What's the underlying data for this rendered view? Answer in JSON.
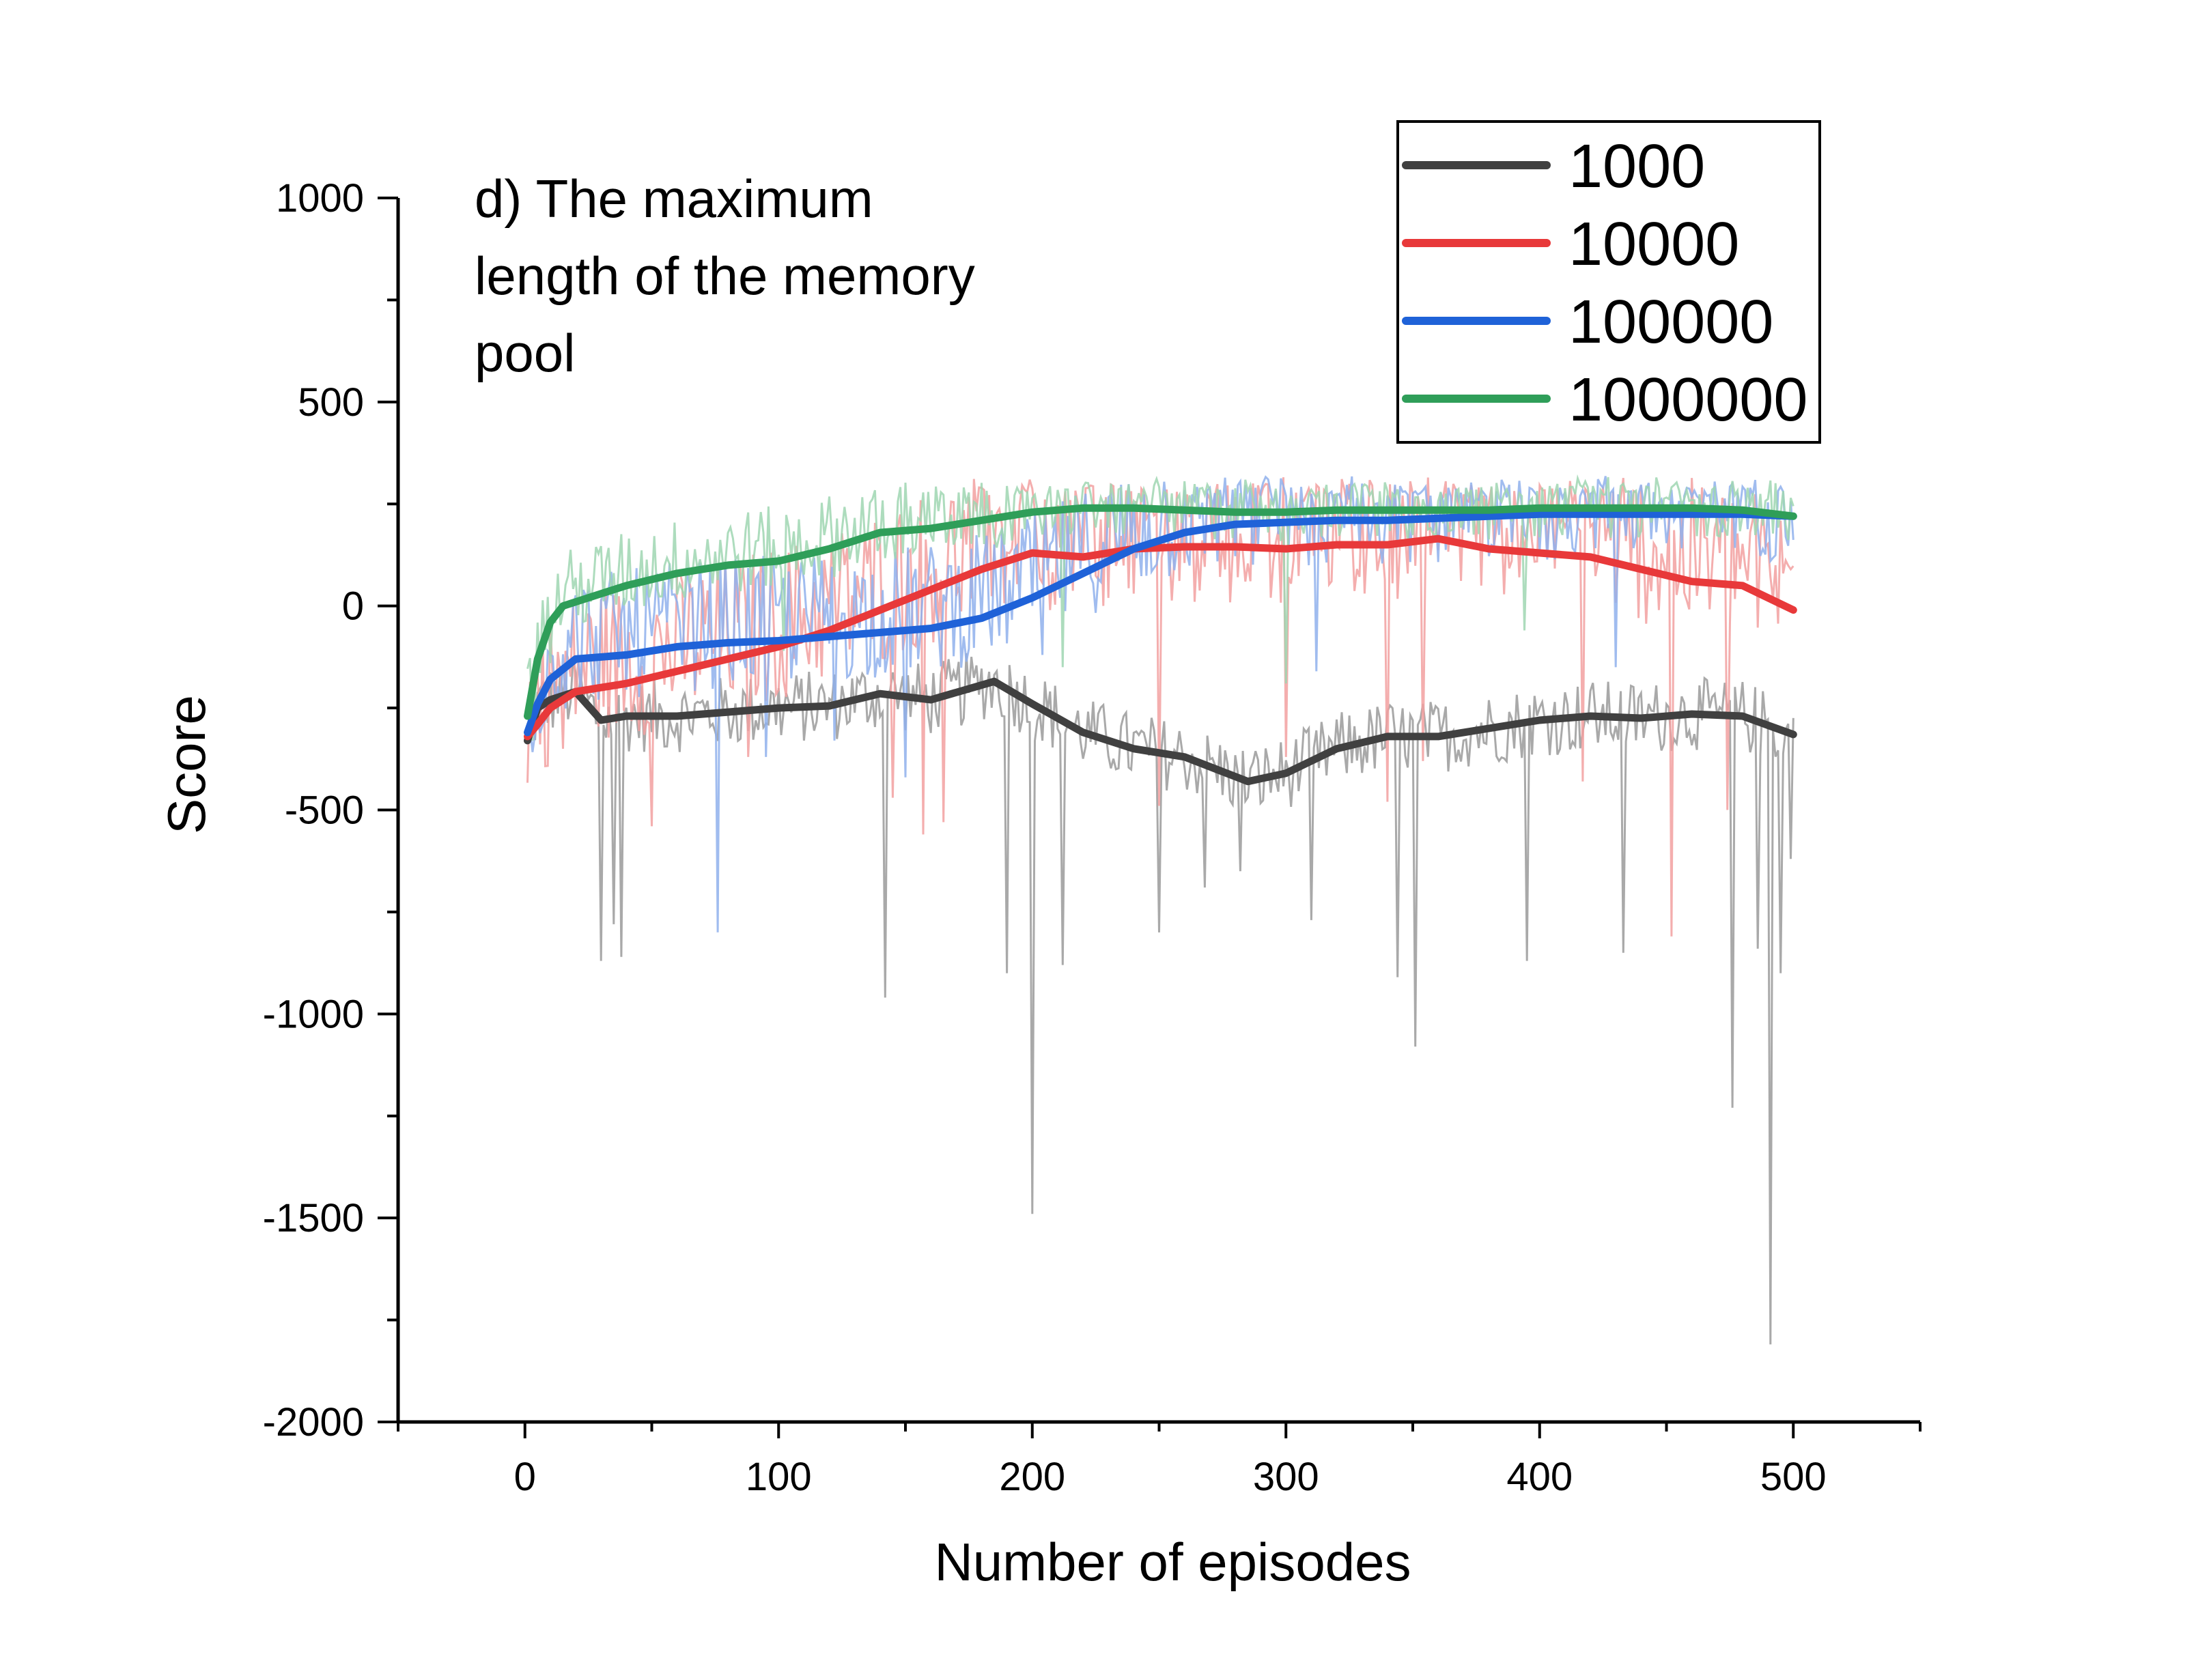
{
  "chart_data": {
    "type": "line",
    "title": "",
    "annotation_lines": [
      "d) The maximum",
      "length of the memory",
      "pool"
    ],
    "xlabel": "Number of episodes",
    "ylabel": "Score",
    "xlim": [
      -50,
      550
    ],
    "ylim": [
      -2000,
      1000
    ],
    "x_ticks": [
      0,
      100,
      200,
      300,
      400,
      500
    ],
    "y_ticks": [
      -2000,
      -1500,
      -1000,
      -500,
      0,
      500,
      1000
    ],
    "x_tick_labels": [
      "0",
      "100",
      "200",
      "300",
      "400",
      "500"
    ],
    "y_tick_labels": [
      "-2000",
      "-1500",
      "-1000",
      "-500",
      "0",
      "500",
      "1000"
    ],
    "grid": false,
    "legend_position": "top-right",
    "series": [
      {
        "name": "1000",
        "color": "#404040",
        "raw_color": "#9a9a9a",
        "x": [
          1,
          5,
          10,
          20,
          30,
          40,
          60,
          80,
          100,
          120,
          140,
          160,
          185,
          200,
          220,
          240,
          260,
          285,
          300,
          320,
          340,
          360,
          380,
          400,
          420,
          440,
          460,
          480,
          500
        ],
        "values": [
          -330,
          -250,
          -230,
          -210,
          -280,
          -270,
          -270,
          -260,
          -250,
          -245,
          -215,
          -230,
          -185,
          -240,
          -310,
          -350,
          -370,
          -430,
          -410,
          -350,
          -320,
          -320,
          -300,
          -280,
          -270,
          -275,
          -265,
          -270,
          -315
        ],
        "raw_mean": -330,
        "raw_spread": 110,
        "spikes": [
          [
            30,
            -870
          ],
          [
            35,
            -780
          ],
          [
            38,
            -860
          ],
          [
            142,
            -960
          ],
          [
            190,
            -900
          ],
          [
            200,
            -1490
          ],
          [
            212,
            -880
          ],
          [
            250,
            -800
          ],
          [
            268,
            -690
          ],
          [
            282,
            -650
          ],
          [
            310,
            -770
          ],
          [
            344,
            -910
          ],
          [
            351,
            -1080
          ],
          [
            395,
            -870
          ],
          [
            433,
            -850
          ],
          [
            476,
            -1230
          ],
          [
            486,
            -840
          ],
          [
            491,
            -1810
          ],
          [
            495,
            -900
          ],
          [
            499,
            -620
          ]
        ]
      },
      {
        "name": "10000",
        "color": "#e8393a",
        "raw_color": "#f2a0a0",
        "x": [
          1,
          5,
          10,
          20,
          40,
          60,
          80,
          100,
          120,
          140,
          160,
          180,
          200,
          220,
          240,
          260,
          280,
          300,
          320,
          340,
          360,
          380,
          400,
          420,
          440,
          460,
          480,
          500
        ],
        "values": [
          -320,
          -290,
          -250,
          -210,
          -190,
          -160,
          -130,
          -100,
          -60,
          -10,
          40,
          90,
          130,
          120,
          140,
          145,
          145,
          140,
          150,
          150,
          165,
          140,
          130,
          120,
          90,
          60,
          50,
          -10
        ],
        "raw_mean": -20,
        "raw_spread": 280,
        "spikes": [
          [
            15,
            -350
          ],
          [
            50,
            -540
          ],
          [
            88,
            -370
          ],
          [
            145,
            -470
          ],
          [
            157,
            -560
          ],
          [
            165,
            -530
          ],
          [
            250,
            -490
          ],
          [
            300,
            -370
          ],
          [
            340,
            -480
          ],
          [
            354,
            -380
          ],
          [
            417,
            -430
          ],
          [
            452,
            -810
          ],
          [
            474,
            -500
          ]
        ]
      },
      {
        "name": "100000",
        "color": "#1f62d8",
        "raw_color": "#8fb0ec",
        "x": [
          1,
          5,
          10,
          20,
          40,
          60,
          80,
          100,
          120,
          140,
          160,
          180,
          200,
          220,
          240,
          260,
          280,
          300,
          320,
          340,
          360,
          380,
          400,
          420,
          440,
          460,
          480,
          500
        ],
        "values": [
          -310,
          -240,
          -180,
          -130,
          -120,
          -100,
          -90,
          -85,
          -75,
          -65,
          -55,
          -30,
          20,
          80,
          140,
          180,
          200,
          205,
          210,
          210,
          215,
          220,
          225,
          225,
          225,
          225,
          225,
          220
        ],
        "raw_mean": 10,
        "raw_spread": 230,
        "spikes": [
          [
            76,
            -800
          ],
          [
            95,
            -370
          ],
          [
            122,
            -330
          ],
          [
            150,
            -420
          ],
          [
            204,
            -120
          ],
          [
            312,
            -160
          ],
          [
            430,
            -150
          ]
        ]
      },
      {
        "name": "1000000",
        "color": "#2f9e59",
        "raw_color": "#9fd6b1",
        "x": [
          1,
          5,
          10,
          15,
          20,
          30,
          40,
          60,
          80,
          100,
          120,
          140,
          160,
          180,
          200,
          220,
          240,
          260,
          280,
          300,
          320,
          340,
          360,
          380,
          400,
          420,
          440,
          460,
          480,
          500
        ],
        "values": [
          -270,
          -130,
          -40,
          0,
          10,
          30,
          50,
          80,
          100,
          110,
          140,
          180,
          190,
          210,
          230,
          240,
          240,
          235,
          230,
          230,
          235,
          235,
          235,
          235,
          240,
          240,
          240,
          240,
          235,
          220
        ],
        "raw_mean": 130,
        "raw_spread": 150,
        "spikes": [
          [
            3,
            -330
          ],
          [
            10,
            -140
          ],
          [
            102,
            -110
          ],
          [
            212,
            -150
          ],
          [
            300,
            -190
          ],
          [
            394,
            -60
          ]
        ]
      }
    ]
  }
}
